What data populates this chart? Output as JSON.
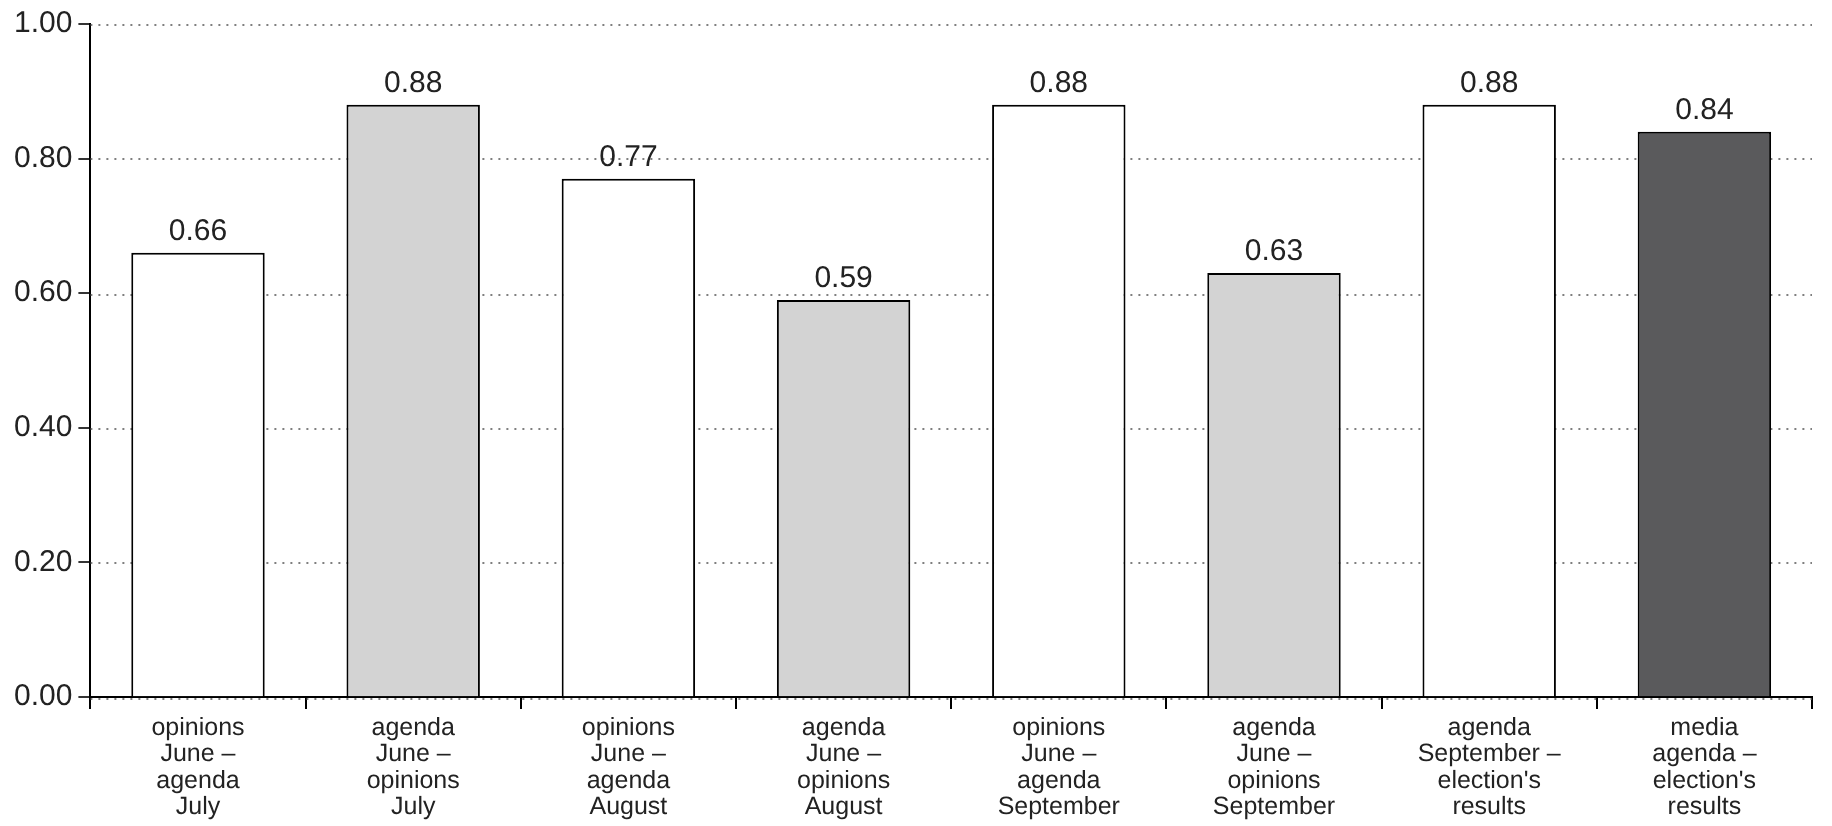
{
  "chart_data": {
    "type": "bar",
    "categories": [
      "opinions\nJune –\nagenda\nJuly",
      "agenda\nJune –\nopinions\nJuly",
      "opinions\nJune –\nagenda\nAugust",
      "agenda\nJune –\nopinions\nAugust",
      "opinions\nJune –\nagenda\nSeptember",
      "agenda\nJune –\nopinions\nSeptember",
      "agenda\nSeptember –\nelection's\nresults",
      "media\nagenda –\nelection's\nresults"
    ],
    "values": [
      0.66,
      0.88,
      0.77,
      0.59,
      0.88,
      0.63,
      0.88,
      0.84
    ],
    "colors": [
      "#ffffff",
      "#d3d3d3",
      "#ffffff",
      "#d3d3d3",
      "#ffffff",
      "#d3d3d3",
      "#ffffff",
      "#5a5a5c"
    ],
    "ylim": [
      0,
      1
    ],
    "yticks": [
      {
        "value": 0,
        "label": "0.00"
      },
      {
        "value": 0.2,
        "label": "0.20"
      },
      {
        "value": 0.4,
        "label": "0.40"
      },
      {
        "value": 0.6,
        "label": "0.60"
      },
      {
        "value": 0.8,
        "label": "0.80"
      },
      {
        "value": 1,
        "label": "1.00"
      }
    ],
    "grid": "y",
    "legend": false,
    "data_labels": true
  }
}
